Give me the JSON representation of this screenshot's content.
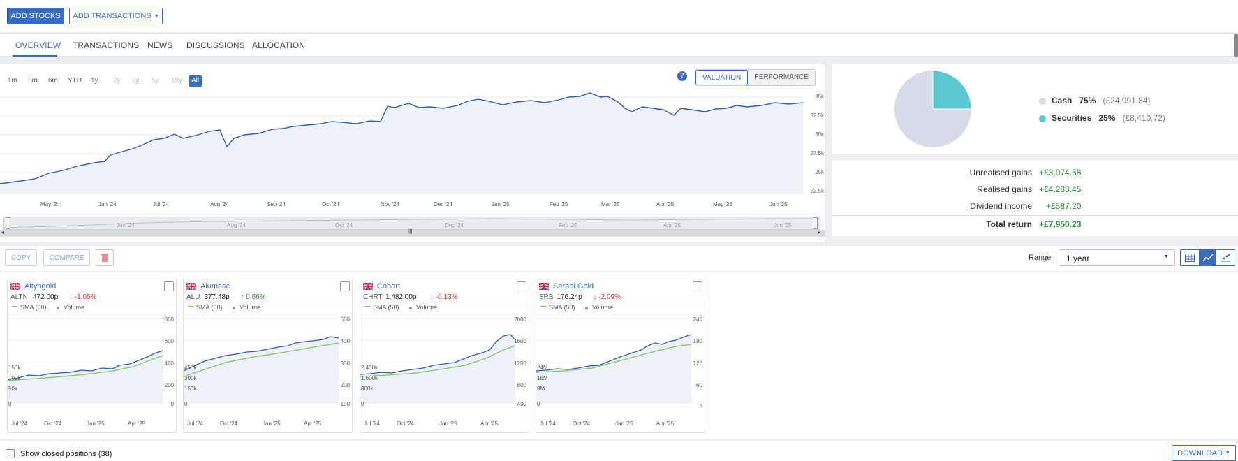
{
  "toolbar": {
    "add_stocks": "ADD STOCKS",
    "add_transactions": "ADD TRANSACTIONS"
  },
  "tabs": [
    {
      "label": "OVERVIEW",
      "active": true
    },
    {
      "label": "TRANSACTIONS"
    },
    {
      "label": "NEWS"
    },
    {
      "label": "DISCUSSIONS"
    },
    {
      "label": "ALLOCATION"
    }
  ],
  "range_buttons": [
    "1m",
    "3m",
    "6m",
    "YTD",
    "1y",
    "2y",
    "3y",
    "5y",
    "10y",
    "All"
  ],
  "view_toggle": {
    "valuation": "VALUATION",
    "performance": "PERFORMANCE",
    "help": "?"
  },
  "main_chart": {
    "y_ticks": [
      "35k",
      "32.5k",
      "30k",
      "27.5k",
      "25k",
      "22.5k"
    ],
    "x_ticks": [
      "May '24",
      "Jun '24",
      "Jul '24",
      "Aug '24",
      "Sep '24",
      "Oct '24",
      "Nov '24",
      "Dec '24",
      "Jan '25",
      "Feb '25",
      "Mar '25",
      "Apr '25",
      "May '25",
      "Jun '25"
    ],
    "nav_ticks": [
      "Jun '24",
      "Aug '24",
      "Oct '24",
      "Dec '24",
      "Feb '25",
      "Apr '25",
      "Jun '25"
    ]
  },
  "allocation": {
    "items": [
      {
        "label": "Cash",
        "pct": "75%",
        "amount": "(£24,991.84)",
        "color": "#d6dbe9"
      },
      {
        "label": "Securities",
        "pct": "25%",
        "amount": "(£8,410.72)",
        "color": "#5bc7d0"
      }
    ]
  },
  "returns": [
    {
      "label": "Unrealised gains",
      "value": "+£3,074.58"
    },
    {
      "label": "Realised gains",
      "value": "+£4,288.45"
    },
    {
      "label": "Dividend income",
      "value": "+£587.20"
    },
    {
      "label": "Total return",
      "value": "+£7,950.23"
    }
  ],
  "actions": {
    "copy": "COPY",
    "compare": "COMPARE",
    "range_label": "Range",
    "range_value": "1 year"
  },
  "cards": [
    {
      "name": "Altyngold",
      "ticker": "ALTN",
      "price": "472.00p",
      "change": "-1.05%",
      "dir": "down",
      "y_ticks": [
        "800",
        "600",
        "400",
        "200",
        "0"
      ],
      "vol_ticks": [
        "150k",
        "100k",
        "50k",
        "0"
      ],
      "x_ticks": [
        "Jul '24",
        "Oct '24",
        "Jan '25",
        "Apr '25"
      ]
    },
    {
      "name": "Alumasc",
      "ticker": "ALU",
      "price": "377.48p",
      "change": "0.66%",
      "dir": "up",
      "y_ticks": [
        "500",
        "400",
        "300",
        "200",
        "100"
      ],
      "vol_ticks": [
        "450k",
        "300k",
        "150k",
        "0"
      ],
      "x_ticks": [
        "Jul '24",
        "Oct '24",
        "Jan '25",
        "Apr '25"
      ]
    },
    {
      "name": "Cohort",
      "ticker": "CHRT",
      "price": "1,482.00p",
      "change": "-0.13%",
      "dir": "down",
      "y_ticks": [
        "2000",
        "1600",
        "1200",
        "800",
        "400"
      ],
      "vol_ticks": [
        "2.400k",
        "1.600k",
        "800k",
        "0"
      ],
      "x_ticks": [
        "Jul '24",
        "Oct '24",
        "Jan '25",
        "Apr '25"
      ]
    },
    {
      "name": "Serabi Gold",
      "ticker": "SRB",
      "price": "176.24p",
      "change": "-2.09%",
      "dir": "down",
      "y_ticks": [
        "240",
        "180",
        "120",
        "60",
        "0"
      ],
      "vol_ticks": [
        "24M",
        "16M",
        "8M",
        "0"
      ],
      "x_ticks": [
        "Jul '24",
        "Oct '24",
        "Jan '25",
        "Apr '25"
      ]
    }
  ],
  "card_legend": {
    "sma": "SMA (50)",
    "volume": "Volume"
  },
  "footer": {
    "closed_positions": "Show closed positions (38)",
    "download": "DOWNLOAD"
  },
  "colors": {
    "accent": "#3a6bbf",
    "gain": "#2a8a3a",
    "loss": "#d0302f",
    "sma": "#7fc46d"
  }
}
